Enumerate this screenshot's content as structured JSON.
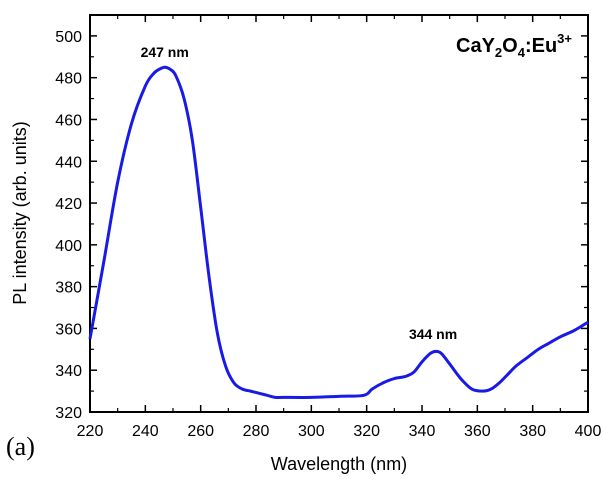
{
  "chart_data": {
    "type": "line",
    "xlabel": "Wavelength (nm)",
    "ylabel": "PL intensity (arb. units)",
    "xlim": [
      220,
      400
    ],
    "ylim": [
      320,
      510
    ],
    "x_ticks": [
      220,
      240,
      260,
      280,
      300,
      320,
      340,
      360,
      380,
      400
    ],
    "y_ticks": [
      320,
      340,
      360,
      380,
      400,
      420,
      440,
      460,
      480,
      500
    ],
    "grid": false,
    "series": [
      {
        "color": "#1a1ae6",
        "x": [
          220,
          225,
          230,
          235,
          240,
          243,
          245,
          247,
          249,
          251,
          254,
          257,
          260,
          263,
          266,
          269,
          272,
          275,
          278,
          281,
          284,
          287,
          290,
          300,
          310,
          319,
          322,
          326,
          330,
          334,
          337,
          340,
          343,
          345,
          347,
          350,
          354,
          358,
          362,
          365,
          368,
          371,
          374,
          378,
          382,
          386,
          390,
          395,
          400
        ],
        "y": [
          355,
          392,
          430,
          458,
          476,
          482,
          484,
          485,
          484,
          481,
          470,
          450,
          418,
          385,
          358,
          342,
          334,
          331,
          330,
          329,
          328,
          327,
          327,
          327,
          327.5,
          328,
          331,
          334,
          336,
          337,
          339,
          344,
          348,
          349,
          348,
          343,
          336,
          331,
          330,
          331,
          334,
          338,
          342,
          346,
          350,
          353,
          356,
          359,
          363
        ]
      }
    ],
    "annotations": [
      {
        "text": "247 nm",
        "x": 247,
        "y": 490
      },
      {
        "text": "344 nm",
        "x": 344,
        "y": 355
      }
    ],
    "compound_label": {
      "base": "CaY",
      "sub1": "2",
      "mid": "O",
      "sub2": "4",
      "tail": ":Eu",
      "sup": "3+"
    },
    "panel_label": "(a)"
  }
}
